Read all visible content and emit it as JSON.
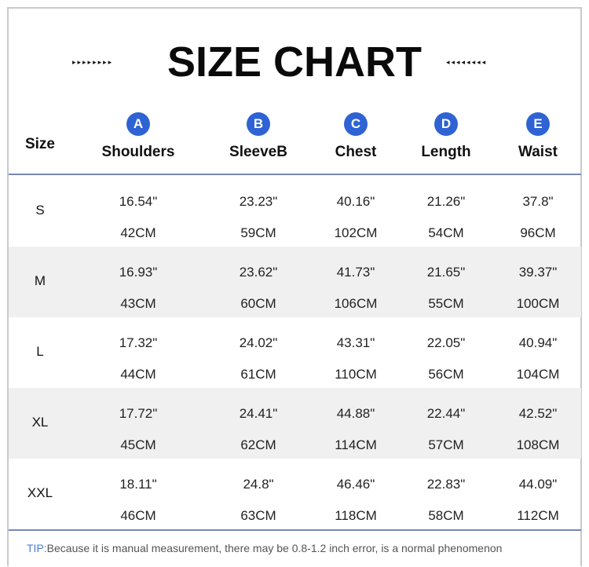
{
  "title": "SIZE CHART",
  "decor": {
    "left_arrows": "▸▸▸▸▸▸▸▸",
    "right_arrows": "◂◂◂◂◂◂◂◂"
  },
  "header": {
    "size_label": "Size",
    "columns": [
      {
        "letter": "A",
        "label": "Shoulders"
      },
      {
        "letter": "B",
        "label": "SleeveB"
      },
      {
        "letter": "C",
        "label": "Chest"
      },
      {
        "letter": "D",
        "label": "Length"
      },
      {
        "letter": "E",
        "label": "Waist"
      }
    ]
  },
  "rows": [
    {
      "size": "S",
      "inch": [
        "16.54\"",
        "23.23\"",
        "40.16\"",
        "21.26\"",
        "37.8\""
      ],
      "cm": [
        "42CM",
        "59CM",
        "102CM",
        "54CM",
        "96CM"
      ]
    },
    {
      "size": "M",
      "inch": [
        "16.93\"",
        "23.62\"",
        "41.73\"",
        "21.65\"",
        "39.37\""
      ],
      "cm": [
        "43CM",
        "60CM",
        "106CM",
        "55CM",
        "100CM"
      ]
    },
    {
      "size": "L",
      "inch": [
        "17.32\"",
        "24.02\"",
        "43.31\"",
        "22.05\"",
        "40.94\""
      ],
      "cm": [
        "44CM",
        "61CM",
        "110CM",
        "56CM",
        "104CM"
      ]
    },
    {
      "size": "XL",
      "inch": [
        "17.72\"",
        "24.41\"",
        "44.88\"",
        "22.44\"",
        "42.52\""
      ],
      "cm": [
        "45CM",
        "62CM",
        "114CM",
        "57CM",
        "108CM"
      ]
    },
    {
      "size": "XXL",
      "inch": [
        "18.11\"",
        "24.8\"",
        "46.46\"",
        "22.83\"",
        "44.09\""
      ],
      "cm": [
        "46CM",
        "63CM",
        "118CM",
        "58CM",
        "112CM"
      ]
    }
  ],
  "tip": {
    "key": "TIP:",
    "text": "Because it is manual measurement, there may be 0.8-1.2 inch error, is a normal phenomenon"
  },
  "colors": {
    "badge": "#2f63d4",
    "rule": "#7688b9",
    "shade": "#f0f0f0",
    "tip_key": "#4a7fd4"
  }
}
